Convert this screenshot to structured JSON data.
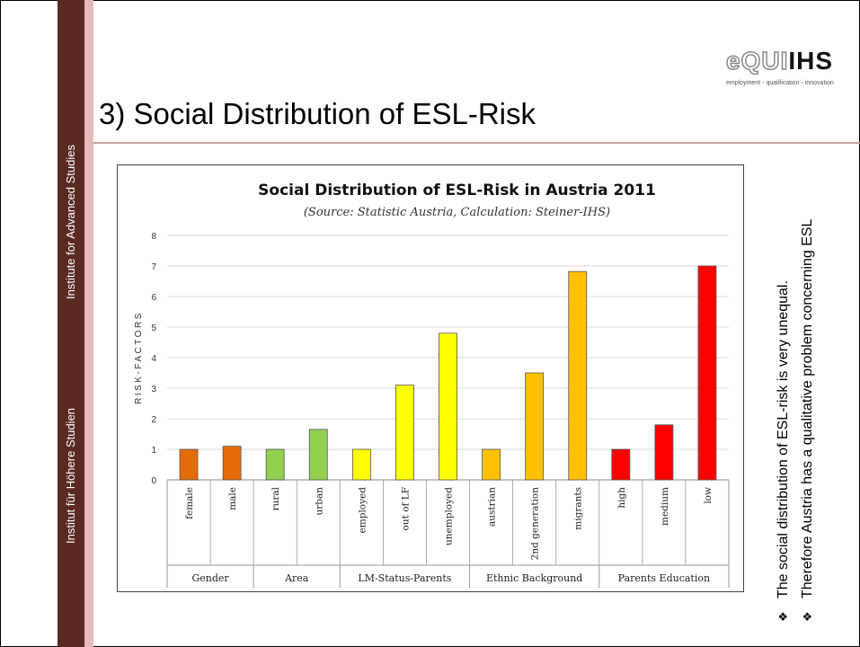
{
  "sidebar": {
    "top_label": "Institute for Advanced Studies",
    "bottom_label": "Institut für Höhere Studien"
  },
  "logo": {
    "name_part1": "eQUI",
    "name_part2": "IHS",
    "tagline": "employment ◦ qualification ◦ innovation"
  },
  "slide": {
    "title": "3) Social Distribution of ESL-Risk"
  },
  "bullets": [
    {
      "mark": "❖",
      "text": "The social distribution of ESL-risk  is very unequal."
    },
    {
      "mark": "❖",
      "text": "Therefore Austria has a qualitative problem concerning ESL"
    }
  ],
  "chart_data": {
    "type": "bar",
    "title": "Social Distribution of ESL-Risk in Austria 2011",
    "subtitle": "(Source: Statistic Austria, Calculation: Steiner-IHS)",
    "ylabel": "RISK-FACTORS",
    "ylim": [
      0,
      8
    ],
    "yticks": [
      "0",
      "1",
      "2",
      "3",
      "4",
      "5",
      "6",
      "7",
      "8"
    ],
    "grid": true,
    "categories": [
      "female",
      "male",
      "rural",
      "urban",
      "employed",
      "out of LF",
      "unemployed",
      "austrian",
      "2nd generation",
      "migrants",
      "high",
      "medium",
      "low"
    ],
    "values": [
      1.0,
      1.1,
      1.0,
      1.65,
      1.0,
      3.1,
      4.8,
      1.0,
      3.5,
      6.82,
      1.0,
      1.8,
      7.0
    ],
    "colors": [
      "#e36c09",
      "#e36c09",
      "#92d050",
      "#92d050",
      "#ffff00",
      "#ffff00",
      "#ffff00",
      "#ffc000",
      "#ffc000",
      "#ffc000",
      "#ff0000",
      "#ff0000",
      "#ff0000"
    ],
    "groups": [
      {
        "label": "Gender",
        "count": 2
      },
      {
        "label": "Area",
        "count": 2
      },
      {
        "label": "LM-Status-Parents",
        "count": 3
      },
      {
        "label": "Ethnic Background",
        "count": 3
      },
      {
        "label": "Parents Education",
        "count": 3
      }
    ]
  }
}
